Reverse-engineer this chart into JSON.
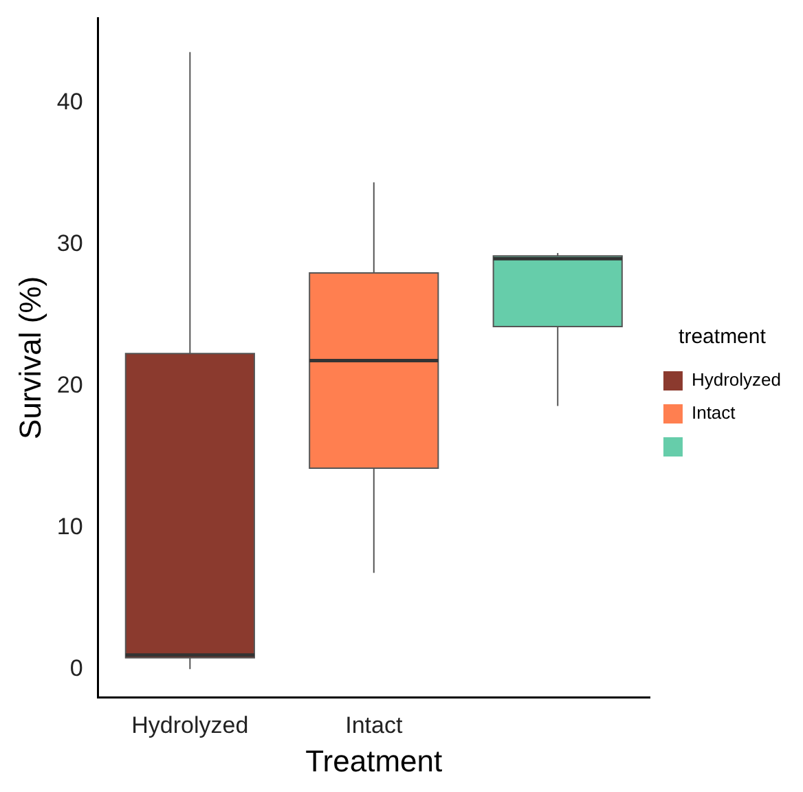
{
  "chart_data": {
    "type": "box",
    "xlabel": "Treatment",
    "ylabel": "Survival (%)",
    "categories": [
      "Hydrolyzed",
      "Intact",
      null
    ],
    "series": [
      {
        "name": "Hydrolyzed",
        "color": "#8b3a2e",
        "boxes": [
          {
            "low": 0,
            "q1": 0.8,
            "median": 1,
            "q3": 22.3,
            "high": 43.6
          },
          null,
          null
        ]
      },
      {
        "name": "Intact",
        "color": "#ff7f50",
        "boxes": [
          null,
          {
            "low": 6.8,
            "q1": 14.2,
            "median": 21.8,
            "q3": 28,
            "high": 34.4
          },
          null
        ]
      },
      {
        "color": "#66cdaa",
        "boxes": [
          null,
          null,
          {
            "low": 18.6,
            "q1": 24.2,
            "median": 29,
            "q3": 29.2,
            "high": 29.4
          }
        ]
      }
    ],
    "ylim": [
      -2,
      46
    ],
    "yticks": [
      0,
      10,
      20,
      30,
      40
    ],
    "legend": "right",
    "legend_title": "treatment"
  }
}
